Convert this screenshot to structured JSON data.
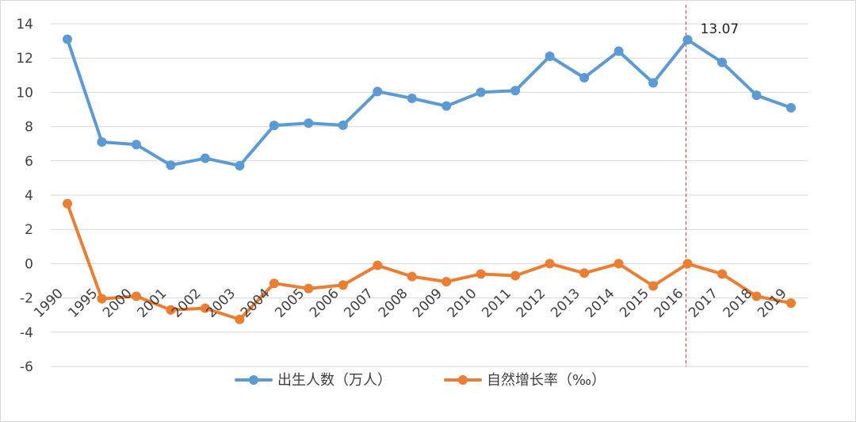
{
  "chart_data": {
    "type": "line",
    "title": "",
    "xlabel": "",
    "ylabel": "",
    "ylim": [
      -6,
      14
    ],
    "y_ticks": [
      14,
      12,
      10,
      8,
      6,
      4,
      2,
      0,
      -2,
      -4,
      -6
    ],
    "categories": [
      "1990",
      "1995",
      "2000",
      "2001",
      "2002",
      "2003",
      "2004",
      "2005",
      "2006",
      "2007",
      "2008",
      "2009",
      "2010",
      "2011",
      "2012",
      "2013",
      "2014",
      "2015",
      "2016",
      "2017",
      "2018",
      "2019"
    ],
    "grid": "horizontal",
    "legend": "bottom-center",
    "series": [
      {
        "name": "出生人数（万人）",
        "color": "#5b9bd5",
        "values": [
          13.1,
          7.1,
          6.95,
          5.75,
          6.15,
          5.72,
          8.07,
          8.2,
          8.08,
          10.05,
          9.65,
          9.2,
          10.0,
          10.1,
          12.1,
          10.85,
          12.4,
          10.55,
          13.07,
          11.75,
          9.83,
          9.1
        ]
      },
      {
        "name": "自然增长率（‰）",
        "color": "#ed7d31",
        "values": [
          3.5,
          -2.05,
          -1.9,
          -2.7,
          -2.6,
          -3.25,
          -1.15,
          -1.45,
          -1.25,
          -0.1,
          -0.75,
          -1.05,
          -0.6,
          -0.7,
          0.0,
          -0.55,
          0.0,
          -1.3,
          0.0,
          -0.6,
          -1.9,
          -2.3
        ]
      }
    ],
    "annotation": {
      "text": "13.07",
      "category": "2016"
    },
    "reference_line": {
      "category": "2016",
      "color": "#e05252",
      "style": "dashed"
    }
  }
}
